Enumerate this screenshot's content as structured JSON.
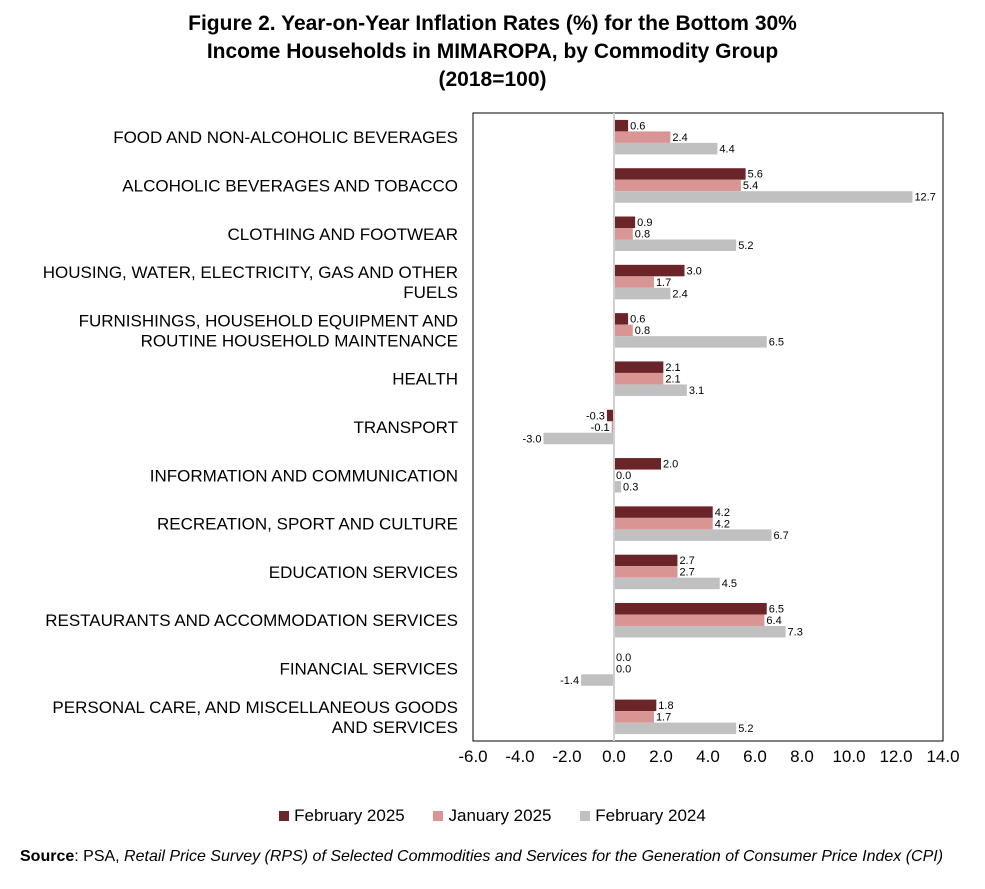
{
  "title_lines": [
    "Figure 2. Year-on-Year Inflation Rates (%) for the Bottom 30%",
    "Income Households in MIMAROPA, by Commodity Group",
    "(2018=100)"
  ],
  "source": {
    "label": "Source",
    "agency": ": PSA, ",
    "publication": "Retail Price Survey (RPS) of Selected Commodities and Services for the Generation of Consumer Price Index (CPI)"
  },
  "chart_data": {
    "type": "bar",
    "orientation": "horizontal",
    "title": "Figure 2. Year-on-Year Inflation Rates (%) for the Bottom 30% Income Households in MIMAROPA, by Commodity Group (2018=100)",
    "categories": [
      [
        "FOOD AND NON-ALCOHOLIC BEVERAGES"
      ],
      [
        "ALCOHOLIC BEVERAGES  AND TOBACCO"
      ],
      [
        "CLOTHING AND FOOTWEAR"
      ],
      [
        "HOUSING, WATER, ELECTRICITY, GAS AND OTHER",
        "FUELS"
      ],
      [
        "FURNISHINGS, HOUSEHOLD EQUIPMENT AND",
        "ROUTINE HOUSEHOLD MAINTENANCE"
      ],
      [
        "HEALTH"
      ],
      [
        "TRANSPORT"
      ],
      [
        "INFORMATION AND COMMUNICATION"
      ],
      [
        "RECREATION, SPORT AND CULTURE"
      ],
      [
        "EDUCATION SERVICES"
      ],
      [
        "RESTAURANTS AND ACCOMMODATION SERVICES"
      ],
      [
        "FINANCIAL SERVICES"
      ],
      [
        "PERSONAL CARE, AND MISCELLANEOUS GOODS",
        "AND SERVICES"
      ]
    ],
    "series": [
      {
        "name": "February 2025",
        "color": "#6b2528",
        "values": [
          0.6,
          5.6,
          0.9,
          3.0,
          0.6,
          2.1,
          -0.3,
          2.0,
          4.2,
          2.7,
          6.5,
          0.0,
          1.8
        ]
      },
      {
        "name": "January 2025",
        "color": "#d99594",
        "values": [
          2.4,
          5.4,
          0.8,
          1.7,
          0.8,
          2.1,
          -0.1,
          0.0,
          4.2,
          2.7,
          6.4,
          0.0,
          1.7
        ]
      },
      {
        "name": "February 2024",
        "color": "#c0c0c0",
        "values": [
          4.4,
          12.7,
          5.2,
          2.4,
          6.5,
          3.1,
          -3.0,
          0.3,
          6.7,
          4.5,
          7.3,
          -1.4,
          5.2
        ]
      }
    ],
    "xlim": [
      -6.0,
      14.0
    ],
    "xticks": [
      -6.0,
      -4.0,
      -2.0,
      0.0,
      2.0,
      4.0,
      6.0,
      8.0,
      10.0,
      12.0,
      14.0
    ],
    "grid": false,
    "legend": "bottom"
  }
}
